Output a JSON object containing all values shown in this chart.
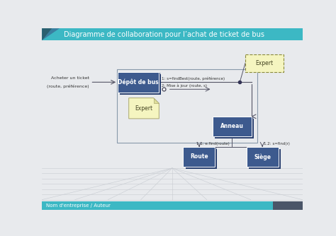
{
  "title": "Diagramme de collaboration pour l’achat de ticket de bus",
  "bg_color": "#e8eaed",
  "title_bg": "#3cb8c4",
  "title_text_color": "white",
  "footer_bg": "#3cb8c4",
  "footer_text": "Nom d'entreprise / Auteur",
  "footer_right_bg": "#4a5568",
  "box_color": "#3d5a8e",
  "box_text_color": "white",
  "box_shadow_color": "#2a4070",
  "depot_label": "Dépôt de bus",
  "anneau_label": "Anneau",
  "route_label": "Route",
  "siege_label": "Siège",
  "expert_dashed_label": "Expert",
  "expert_note_label": "Expert",
  "actor_label": "Acheter un ticket",
  "actor_sub": "(route, préférence)",
  "msg1_label": "1: s=findBest(route, préférence)",
  "msg2_label": "2: Mise à jour (route, s)",
  "msg11_label": "1.1: e.find(route)",
  "msg12_label": "1.2: s=find(r)",
  "floor_line_color": "#c8ccd2",
  "line_color": "#555566"
}
